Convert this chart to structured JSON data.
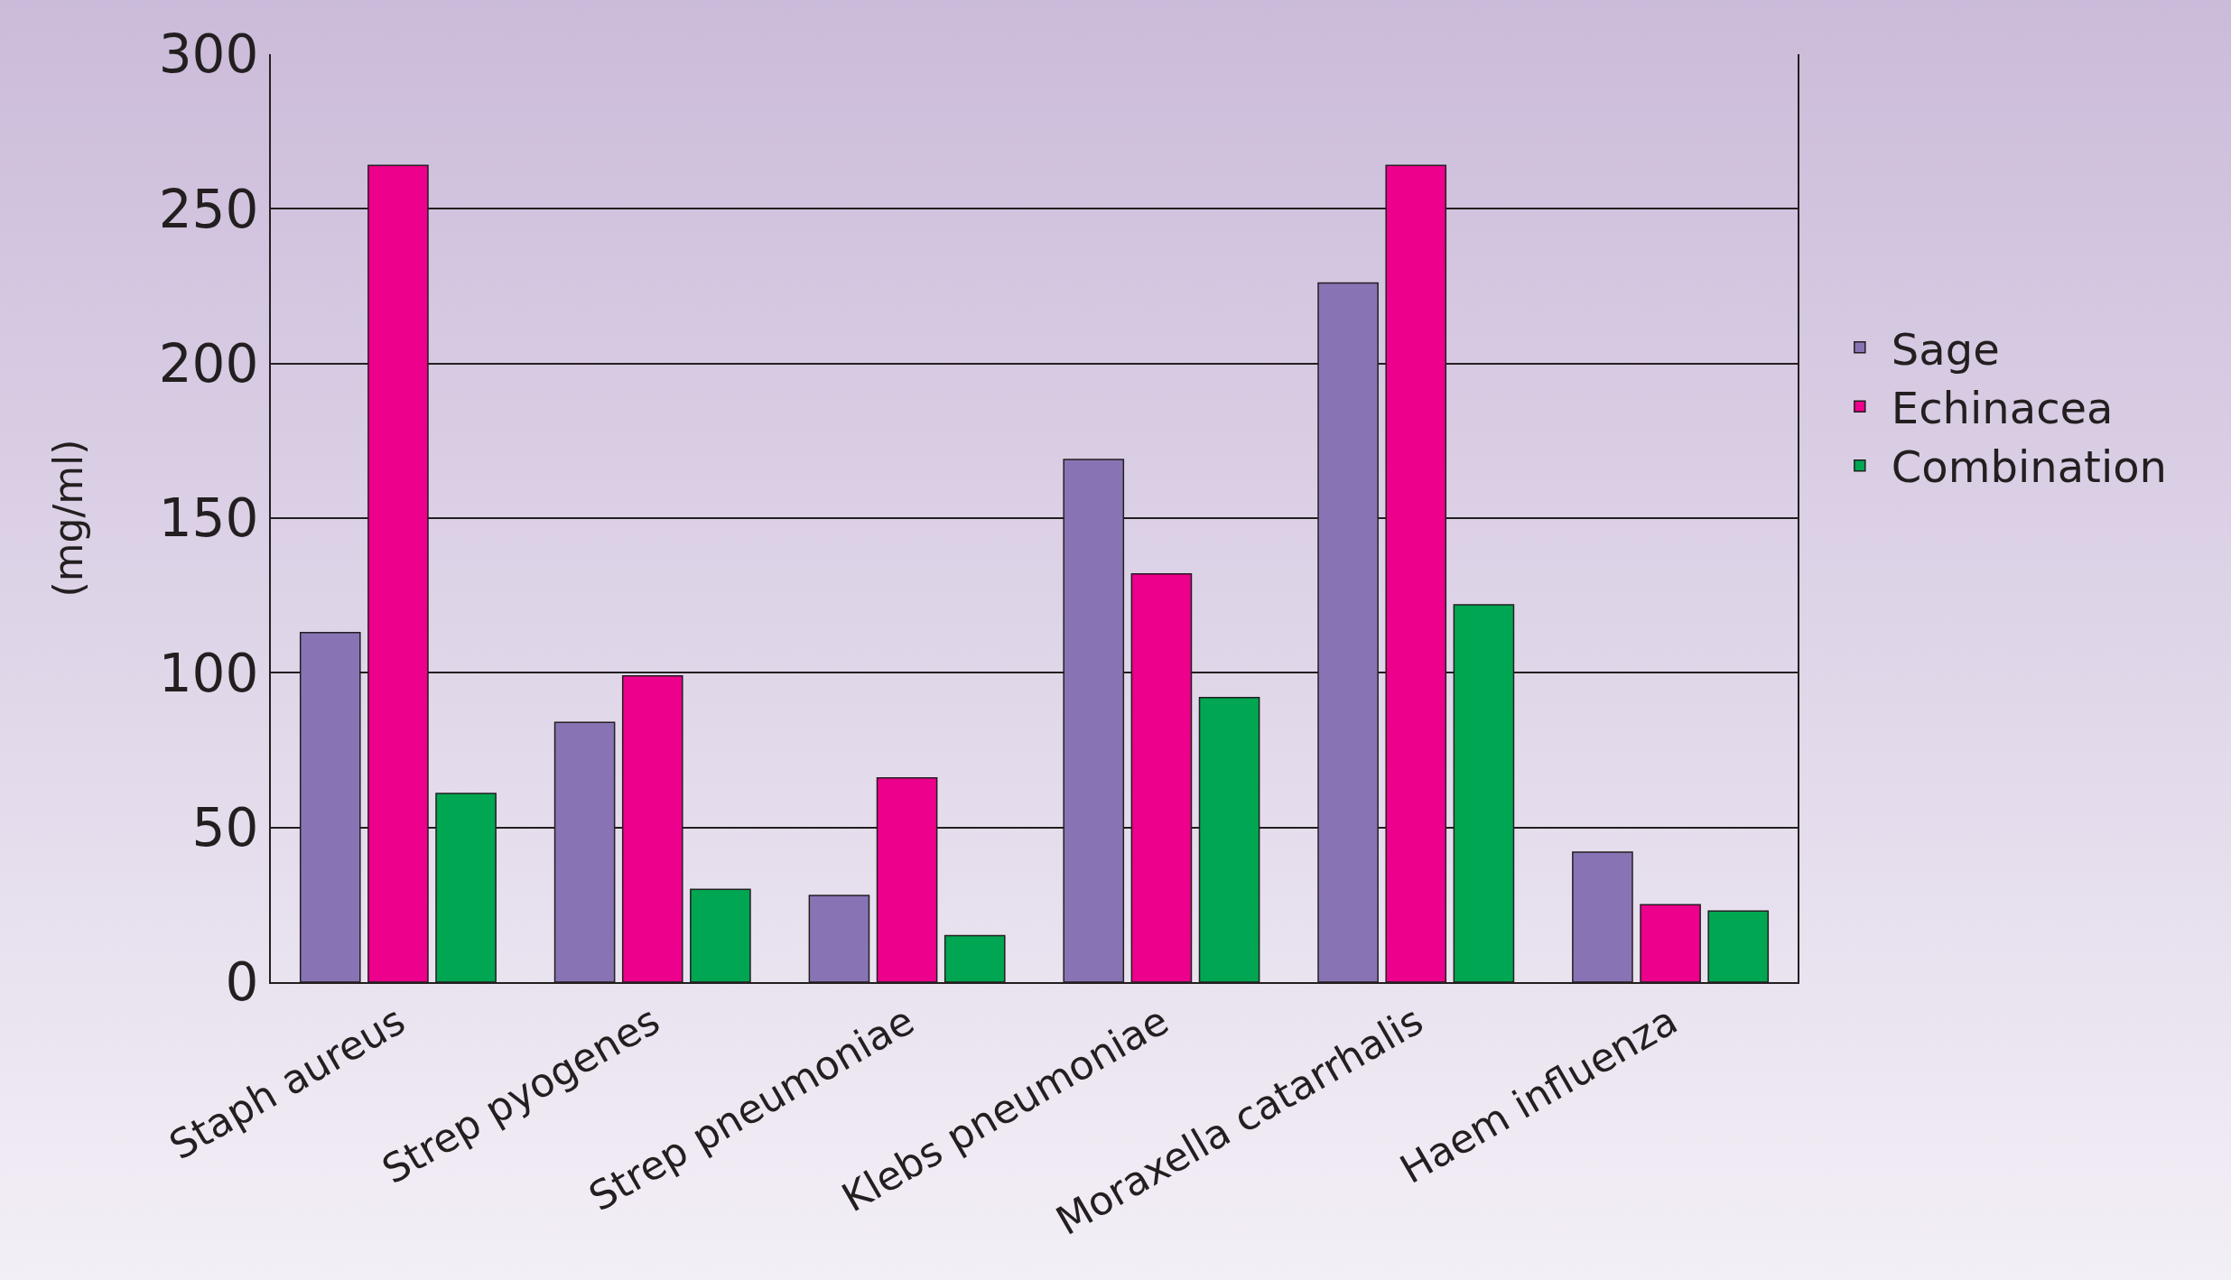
{
  "chart_data": {
    "type": "bar",
    "ylabel": "(mg/ml)",
    "categories": [
      "Staph aureus",
      "Strep pyogenes",
      "Strep pneumoniae",
      "Klebs pneumoniae",
      "Moraxella catarrhalis",
      "Haem influenza"
    ],
    "series": [
      {
        "name": "Sage",
        "color": "#8874b4",
        "values": [
          113,
          84,
          28,
          169,
          226,
          42
        ]
      },
      {
        "name": "Echinacea",
        "color": "#ec008c",
        "values": [
          264,
          99,
          66,
          132,
          264,
          25
        ]
      },
      {
        "name": "Combination",
        "color": "#00a651",
        "values": [
          61,
          30,
          15,
          92,
          122,
          23
        ]
      }
    ],
    "ylim": [
      0,
      300
    ],
    "yticks": [
      0,
      50,
      100,
      150,
      200,
      250,
      300
    ],
    "grid": "y",
    "legend": "right"
  }
}
